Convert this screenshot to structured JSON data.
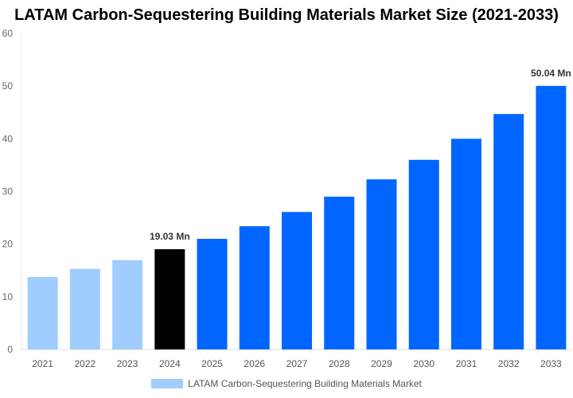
{
  "chart_data": {
    "type": "bar",
    "title": "LATAM Carbon-Sequestering Building Materials Market Size (2021-2033)",
    "categories": [
      "2021",
      "2022",
      "2023",
      "2024",
      "2025",
      "2026",
      "2027",
      "2028",
      "2029",
      "2030",
      "2031",
      "2032",
      "2033"
    ],
    "series": [
      {
        "name": "LATAM Carbon-Sequestering Building Materials Market",
        "values": [
          13.75,
          15.3,
          16.95,
          19.03,
          21.0,
          23.4,
          26.1,
          29.0,
          32.3,
          36.0,
          40.0,
          44.7,
          50.04
        ]
      }
    ],
    "data_labels": [
      {
        "category": "2024",
        "text": "19.03 Mn"
      },
      {
        "category": "2033",
        "text": "50.04 Mn"
      }
    ],
    "ylim": [
      0,
      60
    ],
    "yticks": [
      0,
      10,
      20,
      30,
      40,
      50,
      60
    ],
    "xlabel": "",
    "ylabel": "",
    "grid": false,
    "legend_position": "bottom",
    "colors": {
      "historical": "#a0cdfd",
      "base_year": "#000000",
      "forecast": "#0066ff"
    }
  }
}
